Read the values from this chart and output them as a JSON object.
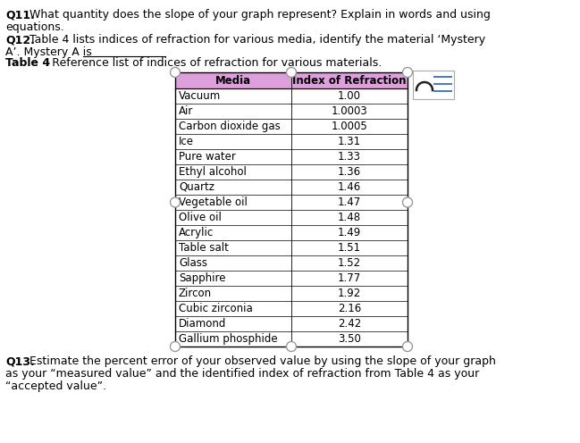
{
  "header_col1": "Media",
  "header_col2": "Index of Refraction",
  "header_bg": "#dda0dd",
  "table_data": [
    [
      "Vacuum",
      "1.00"
    ],
    [
      "Air",
      "1.0003"
    ],
    [
      "Carbon dioxide gas",
      "1.0005"
    ],
    [
      "Ice",
      "1.31"
    ],
    [
      "Pure water",
      "1.33"
    ],
    [
      "Ethyl alcohol",
      "1.36"
    ],
    [
      "Quartz",
      "1.46"
    ],
    [
      "Vegetable oil",
      "1.47"
    ],
    [
      "Olive oil",
      "1.48"
    ],
    [
      "Acrylic",
      "1.49"
    ],
    [
      "Table salt",
      "1.51"
    ],
    [
      "Glass",
      "1.52"
    ],
    [
      "Sapphire",
      "1.77"
    ],
    [
      "Zircon",
      "1.92"
    ],
    [
      "Cubic zirconia",
      "2.16"
    ],
    [
      "Diamond",
      "2.42"
    ],
    [
      "Gallium phosphide",
      "3.50"
    ]
  ],
  "background_color": "#ffffff",
  "text_color": "#000000",
  "font_size_body": 9.0,
  "font_size_table": 8.5,
  "underline_color": "#000000",
  "circle_edge_color": "#999999",
  "icon_line_color": "#4477cc",
  "icon_arch_color": "#222222"
}
